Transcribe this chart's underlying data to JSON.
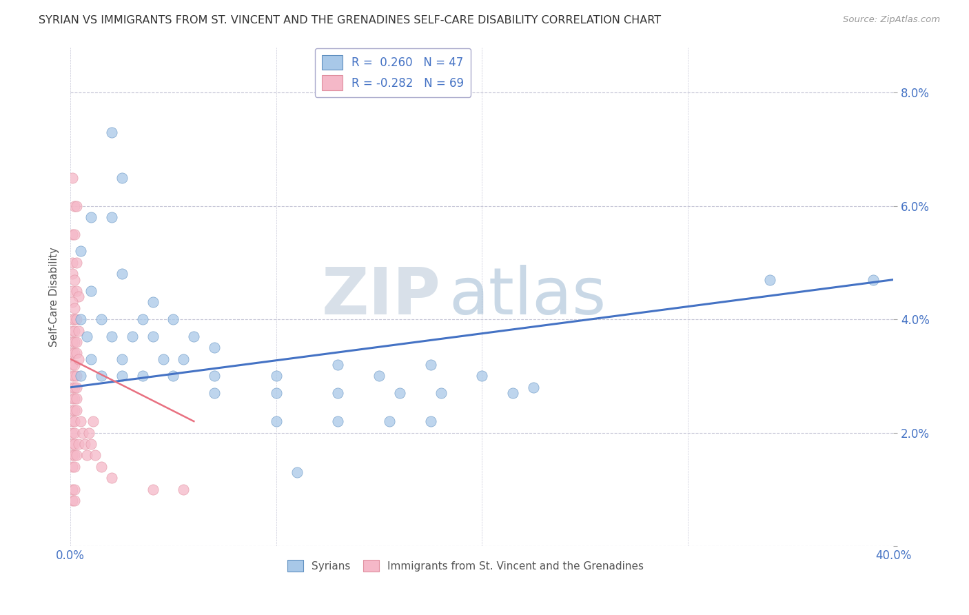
{
  "title": "SYRIAN VS IMMIGRANTS FROM ST. VINCENT AND THE GRENADINES SELF-CARE DISABILITY CORRELATION CHART",
  "source": "Source: ZipAtlas.com",
  "ylabel": "Self-Care Disability",
  "xlim": [
    0.0,
    0.4
  ],
  "ylim": [
    0.0,
    0.088
  ],
  "xticks": [
    0.0,
    0.1,
    0.2,
    0.3,
    0.4
  ],
  "xticklabels": [
    "0.0%",
    "",
    "",
    "",
    "40.0%"
  ],
  "yticks_left": [
    0.0,
    0.02,
    0.04,
    0.06,
    0.08
  ],
  "yticklabels_left": [
    "",
    "",
    "",
    "",
    ""
  ],
  "yticks_right": [
    0.0,
    0.02,
    0.04,
    0.06,
    0.08
  ],
  "yticklabels_right": [
    "",
    "2.0%",
    "4.0%",
    "6.0%",
    "8.0%"
  ],
  "syrian_color": "#a8c8e8",
  "svg_color": "#f5b8c8",
  "trendline_syrian_color": "#4472c4",
  "trendline_svg_color": "#e87080",
  "R_syrian": 0.26,
  "N_syrian": 47,
  "R_svg": -0.282,
  "N_svg": 69,
  "watermark_zip": "ZIP",
  "watermark_atlas": "atlas",
  "background_color": "#ffffff",
  "syrian_points": [
    [
      0.02,
      0.073
    ],
    [
      0.025,
      0.065
    ],
    [
      0.01,
      0.058
    ],
    [
      0.02,
      0.058
    ],
    [
      0.005,
      0.052
    ],
    [
      0.025,
      0.048
    ],
    [
      0.01,
      0.045
    ],
    [
      0.04,
      0.043
    ],
    [
      0.005,
      0.04
    ],
    [
      0.015,
      0.04
    ],
    [
      0.035,
      0.04
    ],
    [
      0.05,
      0.04
    ],
    [
      0.008,
      0.037
    ],
    [
      0.02,
      0.037
    ],
    [
      0.03,
      0.037
    ],
    [
      0.04,
      0.037
    ],
    [
      0.06,
      0.037
    ],
    [
      0.07,
      0.035
    ],
    [
      0.01,
      0.033
    ],
    [
      0.025,
      0.033
    ],
    [
      0.045,
      0.033
    ],
    [
      0.055,
      0.033
    ],
    [
      0.005,
      0.03
    ],
    [
      0.015,
      0.03
    ],
    [
      0.025,
      0.03
    ],
    [
      0.035,
      0.03
    ],
    [
      0.05,
      0.03
    ],
    [
      0.07,
      0.03
    ],
    [
      0.1,
      0.03
    ],
    [
      0.13,
      0.032
    ],
    [
      0.15,
      0.03
    ],
    [
      0.175,
      0.032
    ],
    [
      0.2,
      0.03
    ],
    [
      0.225,
      0.028
    ],
    [
      0.07,
      0.027
    ],
    [
      0.1,
      0.027
    ],
    [
      0.13,
      0.027
    ],
    [
      0.16,
      0.027
    ],
    [
      0.18,
      0.027
    ],
    [
      0.215,
      0.027
    ],
    [
      0.1,
      0.022
    ],
    [
      0.13,
      0.022
    ],
    [
      0.155,
      0.022
    ],
    [
      0.175,
      0.022
    ],
    [
      0.11,
      0.013
    ],
    [
      0.34,
      0.047
    ],
    [
      0.39,
      0.047
    ]
  ],
  "svincent_points": [
    [
      0.001,
      0.065
    ],
    [
      0.002,
      0.06
    ],
    [
      0.003,
      0.06
    ],
    [
      0.001,
      0.055
    ],
    [
      0.002,
      0.055
    ],
    [
      0.001,
      0.05
    ],
    [
      0.003,
      0.05
    ],
    [
      0.001,
      0.048
    ],
    [
      0.002,
      0.047
    ],
    [
      0.001,
      0.045
    ],
    [
      0.003,
      0.045
    ],
    [
      0.004,
      0.044
    ],
    [
      0.001,
      0.043
    ],
    [
      0.002,
      0.042
    ],
    [
      0.001,
      0.04
    ],
    [
      0.002,
      0.04
    ],
    [
      0.003,
      0.04
    ],
    [
      0.001,
      0.038
    ],
    [
      0.002,
      0.038
    ],
    [
      0.004,
      0.038
    ],
    [
      0.001,
      0.036
    ],
    [
      0.002,
      0.036
    ],
    [
      0.003,
      0.036
    ],
    [
      0.001,
      0.034
    ],
    [
      0.002,
      0.034
    ],
    [
      0.003,
      0.034
    ],
    [
      0.001,
      0.032
    ],
    [
      0.002,
      0.032
    ],
    [
      0.004,
      0.033
    ],
    [
      0.001,
      0.03
    ],
    [
      0.002,
      0.03
    ],
    [
      0.003,
      0.03
    ],
    [
      0.001,
      0.028
    ],
    [
      0.002,
      0.028
    ],
    [
      0.003,
      0.028
    ],
    [
      0.001,
      0.026
    ],
    [
      0.002,
      0.026
    ],
    [
      0.003,
      0.026
    ],
    [
      0.001,
      0.024
    ],
    [
      0.002,
      0.024
    ],
    [
      0.003,
      0.024
    ],
    [
      0.001,
      0.022
    ],
    [
      0.002,
      0.022
    ],
    [
      0.001,
      0.02
    ],
    [
      0.002,
      0.02
    ],
    [
      0.001,
      0.018
    ],
    [
      0.002,
      0.018
    ],
    [
      0.001,
      0.016
    ],
    [
      0.002,
      0.016
    ],
    [
      0.001,
      0.014
    ],
    [
      0.002,
      0.014
    ],
    [
      0.003,
      0.016
    ],
    [
      0.004,
      0.018
    ],
    [
      0.005,
      0.022
    ],
    [
      0.006,
      0.02
    ],
    [
      0.007,
      0.018
    ],
    [
      0.008,
      0.016
    ],
    [
      0.009,
      0.02
    ],
    [
      0.01,
      0.018
    ],
    [
      0.011,
      0.022
    ],
    [
      0.012,
      0.016
    ],
    [
      0.015,
      0.014
    ],
    [
      0.02,
      0.012
    ],
    [
      0.04,
      0.01
    ],
    [
      0.055,
      0.01
    ],
    [
      0.001,
      0.01
    ],
    [
      0.002,
      0.01
    ],
    [
      0.001,
      0.008
    ],
    [
      0.002,
      0.008
    ]
  ],
  "trendline_syrian": [
    [
      0.0,
      0.028
    ],
    [
      0.4,
      0.047
    ]
  ],
  "trendline_svg": [
    [
      0.0,
      0.033
    ],
    [
      0.06,
      0.022
    ]
  ]
}
